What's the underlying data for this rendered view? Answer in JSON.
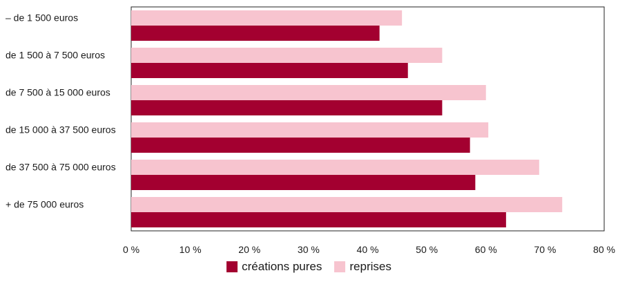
{
  "chart_data": {
    "type": "bar",
    "orientation": "horizontal",
    "categories": [
      "– de 1 500 euros",
      "de 1 500 à 7 500 euros",
      "de 7 500 à 15 000 euros",
      "de 15 000 à 37 500 euros",
      "de 37 500 à 75 000 euros",
      "+ de 75 000 euros"
    ],
    "series": [
      {
        "name": "reprises",
        "color": "#f7c4cf",
        "values": [
          45.8,
          52.6,
          60.0,
          60.4,
          69.0,
          72.9
        ]
      },
      {
        "name": "créations pures",
        "color": "#a30030",
        "values": [
          42.0,
          46.8,
          52.6,
          57.3,
          58.2,
          63.4
        ]
      }
    ],
    "xlim": [
      0,
      80
    ],
    "xticks": [
      "0 %",
      "10 %",
      "20 %",
      "30 %",
      "40 %",
      "50 %",
      "60 %",
      "70 %",
      "80 %"
    ],
    "legend": [
      "créations pures",
      "reprises"
    ],
    "grid": false,
    "legend_position": "bottom",
    "title": "",
    "xlabel": "",
    "ylabel": ""
  }
}
